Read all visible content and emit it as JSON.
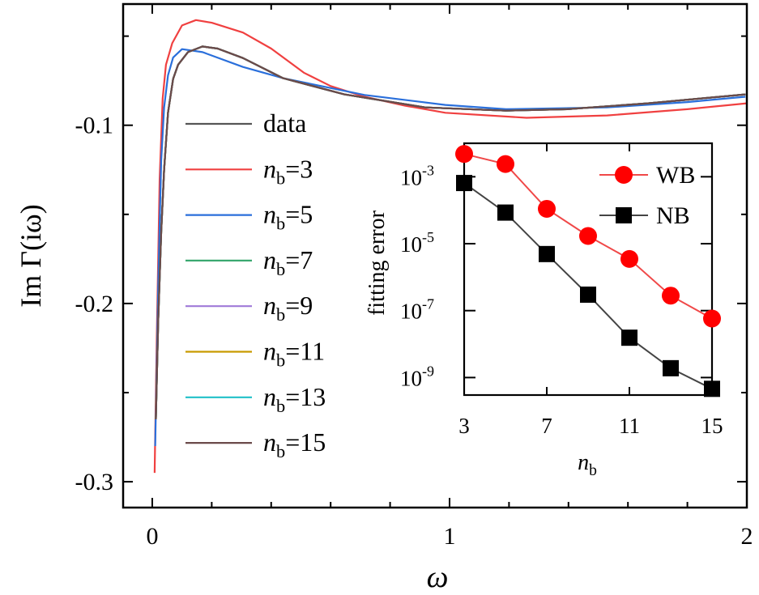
{
  "chart_data": [
    {
      "type": "line",
      "xlabel": "ω",
      "ylabel": "Im Γ(iω)",
      "xlim": [
        -0.098,
        2.0
      ],
      "ylim": [
        -0.3145,
        -0.032
      ],
      "x_ticks": [
        0,
        1,
        2
      ],
      "x_tick_labels": [
        "0",
        "1",
        "2"
      ],
      "y_ticks": [
        -0.1,
        -0.2,
        -0.3
      ],
      "y_tick_labels": [
        "-0.1",
        "-0.2",
        "-0.3"
      ],
      "grid": false,
      "legend_position": "left",
      "series": [
        {
          "name": "data",
          "color": "#555555",
          "x": [
            0.012,
            0.02,
            0.03,
            0.04,
            0.053,
            0.07,
            0.087,
            0.12,
            0.169,
            0.22,
            0.305,
            0.44,
            0.646,
            0.918,
            1.19,
            1.395,
            1.668,
            1.995
          ],
          "y": [
            -0.265,
            -0.21,
            -0.16,
            -0.125,
            -0.093,
            -0.074,
            -0.066,
            -0.059,
            -0.0558,
            -0.057,
            -0.0623,
            -0.0736,
            -0.0827,
            -0.09,
            -0.0918,
            -0.091,
            -0.0877,
            -0.0827
          ]
        },
        {
          "name": "n_b=3",
          "color": "#f04040",
          "x": [
            0.008,
            0.015,
            0.025,
            0.035,
            0.046,
            0.067,
            0.1,
            0.147,
            0.2,
            0.305,
            0.4,
            0.51,
            0.6,
            0.714,
            0.85,
            0.986,
            1.259,
            1.53,
            1.8,
            2.0
          ],
          "y": [
            -0.295,
            -0.22,
            -0.13,
            -0.085,
            -0.066,
            -0.054,
            -0.044,
            -0.041,
            -0.0425,
            -0.048,
            -0.057,
            -0.0705,
            -0.078,
            -0.084,
            -0.089,
            -0.093,
            -0.0958,
            -0.0945,
            -0.091,
            -0.0877
          ]
        },
        {
          "name": "n_b=5",
          "color": "#2a6fdb",
          "x": [
            0.01,
            0.02,
            0.03,
            0.04,
            0.053,
            0.07,
            0.1,
            0.169,
            0.305,
            0.44,
            0.714,
            0.986,
            1.19,
            1.53,
            1.8,
            1.995
          ],
          "y": [
            -0.28,
            -0.19,
            -0.12,
            -0.09,
            -0.072,
            -0.062,
            -0.0573,
            -0.059,
            -0.0673,
            -0.0736,
            -0.083,
            -0.0886,
            -0.091,
            -0.09,
            -0.087,
            -0.084
          ]
        },
        {
          "name": "n_b=7",
          "color": "#3aa870",
          "x": [
            0.012,
            0.02,
            0.03,
            0.04,
            0.053,
            0.07,
            0.087,
            0.12,
            0.169,
            0.22,
            0.305,
            0.44,
            0.646,
            0.918,
            1.19,
            1.395,
            1.668,
            1.995
          ],
          "y": [
            -0.265,
            -0.21,
            -0.16,
            -0.125,
            -0.093,
            -0.074,
            -0.066,
            -0.059,
            -0.0558,
            -0.057,
            -0.0623,
            -0.0736,
            -0.0827,
            -0.09,
            -0.0918,
            -0.091,
            -0.0877,
            -0.0827
          ]
        },
        {
          "name": "n_b=9",
          "color": "#a07ad8",
          "x": [
            0.012,
            0.02,
            0.03,
            0.04,
            0.053,
            0.07,
            0.087,
            0.12,
            0.169,
            0.22,
            0.305,
            0.44,
            0.646,
            0.918,
            1.19,
            1.395,
            1.668,
            1.995
          ],
          "y": [
            -0.265,
            -0.21,
            -0.16,
            -0.125,
            -0.093,
            -0.074,
            -0.066,
            -0.059,
            -0.0558,
            -0.057,
            -0.0623,
            -0.0736,
            -0.0827,
            -0.09,
            -0.0918,
            -0.091,
            -0.0877,
            -0.0827
          ]
        },
        {
          "name": "n_b=11",
          "color": "#c89a00",
          "x": [
            0.012,
            0.02,
            0.03,
            0.04,
            0.053,
            0.07,
            0.087,
            0.12,
            0.169,
            0.22,
            0.305,
            0.44,
            0.646,
            0.918,
            1.19,
            1.395,
            1.668,
            1.995
          ],
          "y": [
            -0.265,
            -0.21,
            -0.16,
            -0.125,
            -0.093,
            -0.074,
            -0.066,
            -0.059,
            -0.0558,
            -0.057,
            -0.0623,
            -0.0736,
            -0.0827,
            -0.09,
            -0.0918,
            -0.091,
            -0.0877,
            -0.0827
          ]
        },
        {
          "name": "n_b=13",
          "color": "#20c0c8",
          "x": [
            0.012,
            0.02,
            0.03,
            0.04,
            0.053,
            0.07,
            0.087,
            0.12,
            0.169,
            0.22,
            0.305,
            0.44,
            0.646,
            0.918,
            1.19,
            1.395,
            1.668,
            1.995
          ],
          "y": [
            -0.265,
            -0.21,
            -0.16,
            -0.125,
            -0.093,
            -0.074,
            -0.066,
            -0.059,
            -0.0558,
            -0.057,
            -0.0623,
            -0.0736,
            -0.0827,
            -0.09,
            -0.0918,
            -0.091,
            -0.0877,
            -0.0827
          ]
        },
        {
          "name": "n_b=15",
          "color": "#6b4a4a",
          "x": [
            0.012,
            0.02,
            0.03,
            0.04,
            0.053,
            0.07,
            0.087,
            0.12,
            0.169,
            0.22,
            0.305,
            0.44,
            0.646,
            0.918,
            1.19,
            1.395,
            1.668,
            1.995
          ],
          "y": [
            -0.265,
            -0.21,
            -0.16,
            -0.125,
            -0.093,
            -0.074,
            -0.066,
            -0.059,
            -0.0558,
            -0.057,
            -0.0623,
            -0.0736,
            -0.0827,
            -0.09,
            -0.0918,
            -0.091,
            -0.0877,
            -0.0827
          ]
        }
      ]
    },
    {
      "type": "line",
      "xlabel": "n_b",
      "ylabel": "fitting error",
      "yscale": "log",
      "xlim": [
        3,
        15
      ],
      "ylim": [
        3e-10,
        0.01
      ],
      "x_ticks": [
        3,
        7,
        11,
        15
      ],
      "x_tick_labels": [
        "3",
        "7",
        "11",
        "15"
      ],
      "y_ticks": [
        0.001,
        1e-05,
        1e-07,
        1e-09
      ],
      "y_tick_labels": [
        {
          "base": "10",
          "exp": "-3"
        },
        {
          "base": "10",
          "exp": "-5"
        },
        {
          "base": "10",
          "exp": "-7"
        },
        {
          "base": "10",
          "exp": "-9"
        }
      ],
      "grid": false,
      "legend_position": "top-right",
      "series": [
        {
          "name": "WB",
          "color": "#ff0000",
          "line_color": "#f04848",
          "marker": "circle",
          "x": [
            3,
            5,
            7,
            9,
            11,
            13,
            15
          ],
          "y": [
            0.0048,
            0.0024,
            0.00011,
            1.7e-05,
            3.5e-06,
            2.8e-07,
            5.8e-08
          ]
        },
        {
          "name": "NB",
          "color": "#000000",
          "line_color": "#444444",
          "marker": "square",
          "x": [
            3,
            5,
            7,
            9,
            11,
            13,
            15
          ],
          "y": [
            0.00065,
            8.5e-05,
            4.9e-06,
            3e-07,
            1.55e-08,
            1.9e-09,
            4.6e-10
          ]
        }
      ]
    }
  ]
}
